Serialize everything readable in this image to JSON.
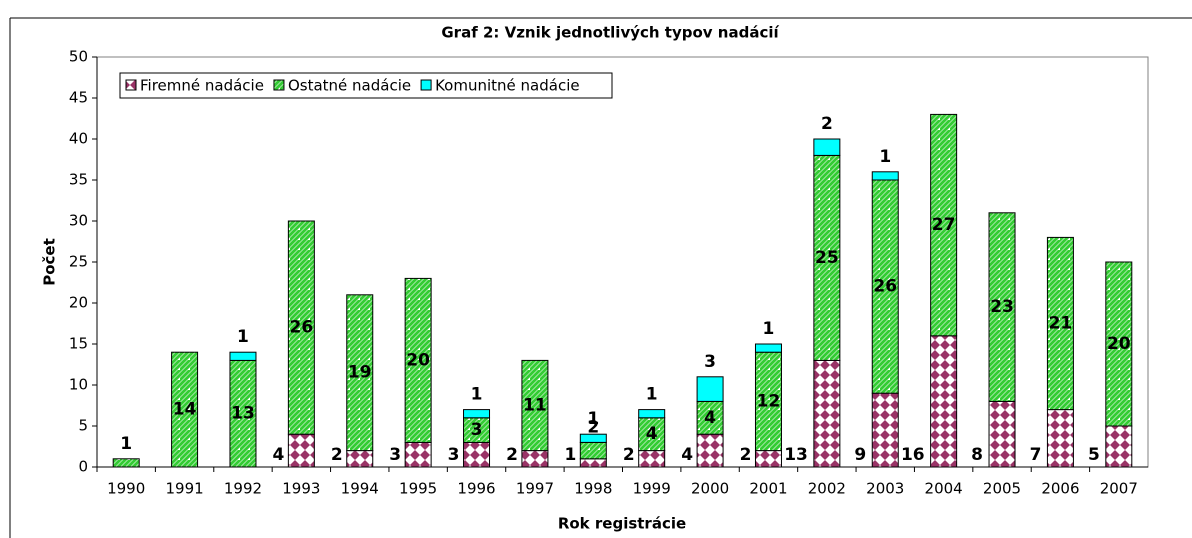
{
  "chart_data": {
    "type": "bar",
    "stacked": true,
    "title": "Graf 2: Vznik jednotlivých typov nadácií",
    "x_label": "Rok registrácie",
    "y_label": "Počet",
    "categories": [
      "1990",
      "1991",
      "1992",
      "1993",
      "1994",
      "1995",
      "1996",
      "1997",
      "1998",
      "1999",
      "2000",
      "2001",
      "2002",
      "2003",
      "2004",
      "2005",
      "2006",
      "2007"
    ],
    "series": [
      {
        "name": "Firemné nadácie",
        "color": "#993366",
        "values": [
          null,
          null,
          null,
          4,
          2,
          3,
          3,
          2,
          1,
          2,
          4,
          2,
          13,
          9,
          16,
          8,
          7,
          5
        ]
      },
      {
        "name": "Ostatné nadácie",
        "color": "#33cc33",
        "values": [
          1,
          14,
          13,
          26,
          19,
          20,
          3,
          11,
          2,
          4,
          4,
          12,
          25,
          26,
          27,
          23,
          21,
          20
        ]
      },
      {
        "name": "Komunitné nadácie",
        "color": "#00ffff",
        "values": [
          null,
          null,
          1,
          null,
          null,
          null,
          1,
          null,
          1,
          1,
          3,
          1,
          2,
          1,
          null,
          null,
          null,
          null
        ]
      }
    ],
    "ylim": [
      0,
      50
    ],
    "yticks": [
      0,
      5,
      10,
      15,
      20,
      25,
      30,
      35,
      40,
      45,
      50
    ],
    "legend": "top-left"
  }
}
